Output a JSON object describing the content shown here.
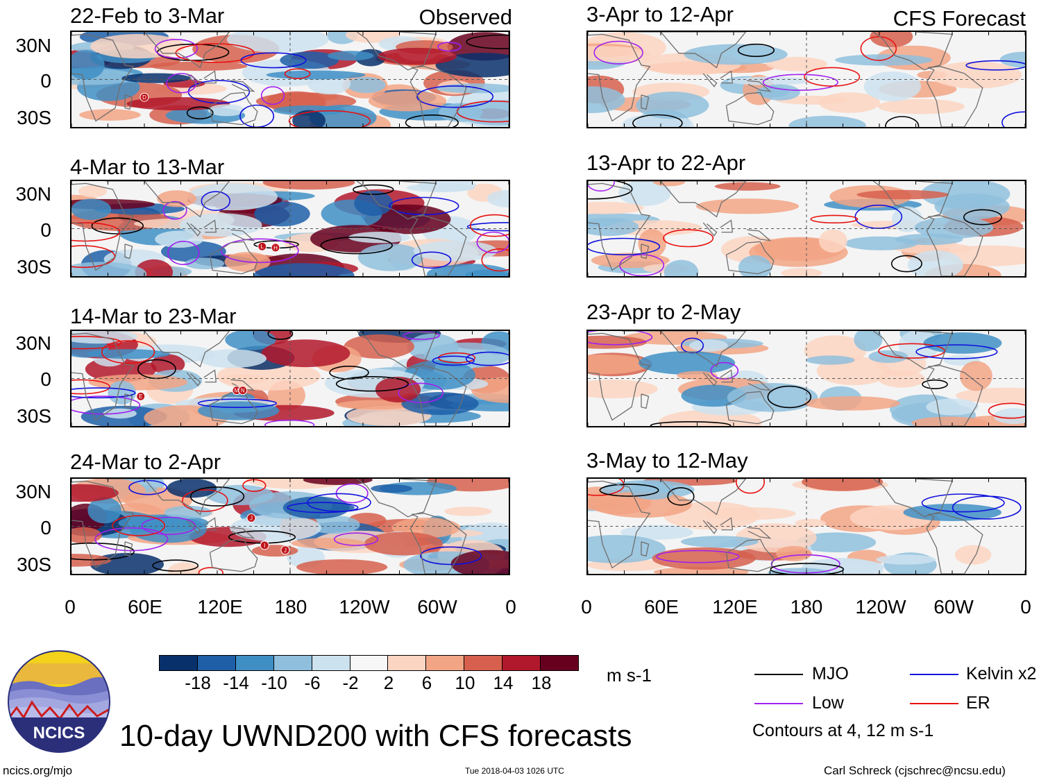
{
  "colors": {
    "mjo": "#000000",
    "kelvin": "#1010dd",
    "low": "#a020f0",
    "er": "#e81010",
    "coast": "#6e6e6e",
    "scale": [
      "#08306b",
      "#1f5fa8",
      "#3f8fc5",
      "#8fbfdd",
      "#cde2ef",
      "#f7f7f7",
      "#fbd5c2",
      "#f2a585",
      "#d6604d",
      "#b2182b",
      "#67001f"
    ]
  },
  "observed": {
    "label": "Observed",
    "panels": [
      {
        "title": "22-Feb to 3-Mar",
        "markers": [
          {
            "t": "D",
            "lon": 60,
            "lat": -15
          }
        ]
      },
      {
        "title": "4-Mar to 13-Mar",
        "markers": [
          {
            "t": "L",
            "lon": 157,
            "lat": -15
          },
          {
            "t": "H",
            "lon": 168,
            "lat": -16
          }
        ]
      },
      {
        "title": "14-Mar to 23-Mar",
        "markers": [
          {
            "t": "E",
            "lon": 57,
            "lat": -15
          },
          {
            "t": "M",
            "lon": 136,
            "lat": -10
          },
          {
            "t": "N",
            "lon": 141,
            "lat": -10
          }
        ]
      },
      {
        "title": "24-Mar to 2-Apr",
        "markers": [
          {
            "t": "J",
            "lon": 148,
            "lat": 7
          },
          {
            "t": "I",
            "lon": 159,
            "lat": -16
          },
          {
            "t": "J",
            "lon": 176,
            "lat": -20
          }
        ]
      }
    ]
  },
  "forecast": {
    "label": "CFS Forecast",
    "panels": [
      {
        "title": "3-Apr to 12-Apr"
      },
      {
        "title": "13-Apr to 22-Apr"
      },
      {
        "title": "23-Apr to 2-May"
      },
      {
        "title": "3-May to 12-May"
      }
    ]
  },
  "axes": {
    "lat_labels": [
      "30N",
      "0",
      "30S"
    ],
    "lon_labels": [
      "0",
      "60E",
      "120E",
      "180",
      "120W",
      "60W",
      "0"
    ]
  },
  "colorbar": {
    "labels": [
      "-18",
      "-14",
      "-10",
      "-6",
      "-2",
      "2",
      "6",
      "10",
      "14",
      "18"
    ],
    "units": "m s-1"
  },
  "legend": {
    "items": [
      {
        "name": "MJO",
        "color_key": "mjo"
      },
      {
        "name": "Kelvin x2",
        "color_key": "kelvin"
      },
      {
        "name": "Low",
        "color_key": "low"
      },
      {
        "name": "ER",
        "color_key": "er"
      }
    ],
    "note": "Contours at 4, 12 m s-1"
  },
  "logo_text": "NCICS",
  "main_title": "10-day UWND200 with CFS forecasts",
  "footer": {
    "left": "ncics.org/mjo",
    "center": "Tue 2018-04-03 1026 UTC",
    "right": "Carl Schreck (cjschrec@ncsu.edu)"
  }
}
